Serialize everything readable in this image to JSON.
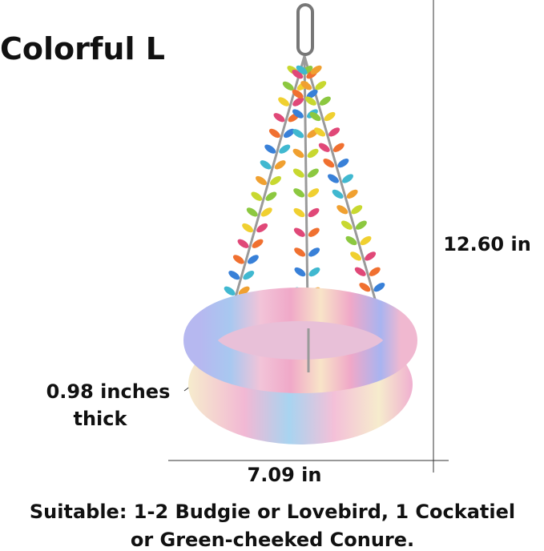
{
  "title": "Colorful L",
  "dimensions": {
    "height": "12.60 in",
    "width": "7.09 in",
    "thickness": [
      "0.98 inches",
      "thick"
    ]
  },
  "caption": [
    "Suitable: 1-2 Budgie or Lovebird, 1 Cockatiel",
    "or Green-cheeked Conure."
  ]
}
